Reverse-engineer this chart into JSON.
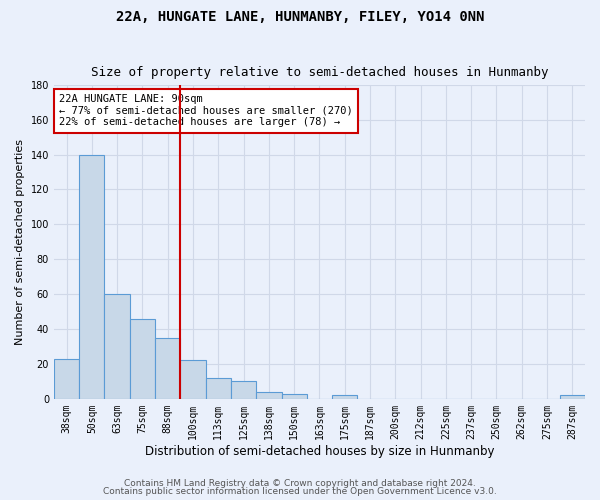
{
  "title": "22A, HUNGATE LANE, HUNMANBY, FILEY, YO14 0NN",
  "subtitle": "Size of property relative to semi-detached houses in Hunmanby",
  "xlabel": "Distribution of semi-detached houses by size in Hunmanby",
  "ylabel": "Number of semi-detached properties",
  "categories": [
    "38sqm",
    "50sqm",
    "63sqm",
    "75sqm",
    "88sqm",
    "100sqm",
    "113sqm",
    "125sqm",
    "138sqm",
    "150sqm",
    "163sqm",
    "175sqm",
    "187sqm",
    "200sqm",
    "212sqm",
    "225sqm",
    "237sqm",
    "250sqm",
    "262sqm",
    "275sqm",
    "287sqm"
  ],
  "values": [
    23,
    140,
    60,
    46,
    35,
    22,
    12,
    10,
    4,
    3,
    0,
    2,
    0,
    0,
    0,
    0,
    0,
    0,
    0,
    0,
    2
  ],
  "bar_color": "#c8d8e8",
  "bar_edge_color": "#5b9bd5",
  "grid_color": "#d0d8e8",
  "background_color": "#eaf0fb",
  "vline_x_index": 4.5,
  "vline_color": "#cc0000",
  "annotation_line1": "22A HUNGATE LANE: 90sqm",
  "annotation_line2": "← 77% of semi-detached houses are smaller (270)",
  "annotation_line3": "22% of semi-detached houses are larger (78) →",
  "annotation_box_color": "#ffffff",
  "annotation_box_edge": "#cc0000",
  "ylim": [
    0,
    180
  ],
  "yticks": [
    0,
    20,
    40,
    60,
    80,
    100,
    120,
    140,
    160,
    180
  ],
  "footer1": "Contains HM Land Registry data © Crown copyright and database right 2024.",
  "footer2": "Contains public sector information licensed under the Open Government Licence v3.0.",
  "title_fontsize": 10,
  "subtitle_fontsize": 9,
  "xlabel_fontsize": 8.5,
  "ylabel_fontsize": 8,
  "tick_fontsize": 7,
  "annotation_fontsize": 7.5,
  "footer_fontsize": 6.5
}
